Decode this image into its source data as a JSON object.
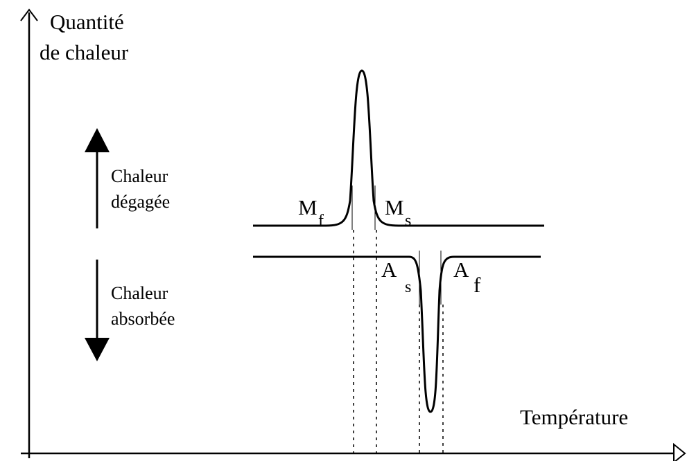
{
  "y_axis_label": [
    "Quantité",
    "de chaleur"
  ],
  "x_axis_label": "Température",
  "released": [
    "Chaleur",
    "dégagée"
  ],
  "absorbed": [
    "Chaleur",
    "absorbée"
  ],
  "markers": [
    {
      "letter": "M",
      "sub": "f"
    },
    {
      "letter": "M",
      "sub": "s"
    },
    {
      "letter": "A",
      "sub": "s"
    },
    {
      "letter": "A",
      "sub": "f"
    }
  ]
}
